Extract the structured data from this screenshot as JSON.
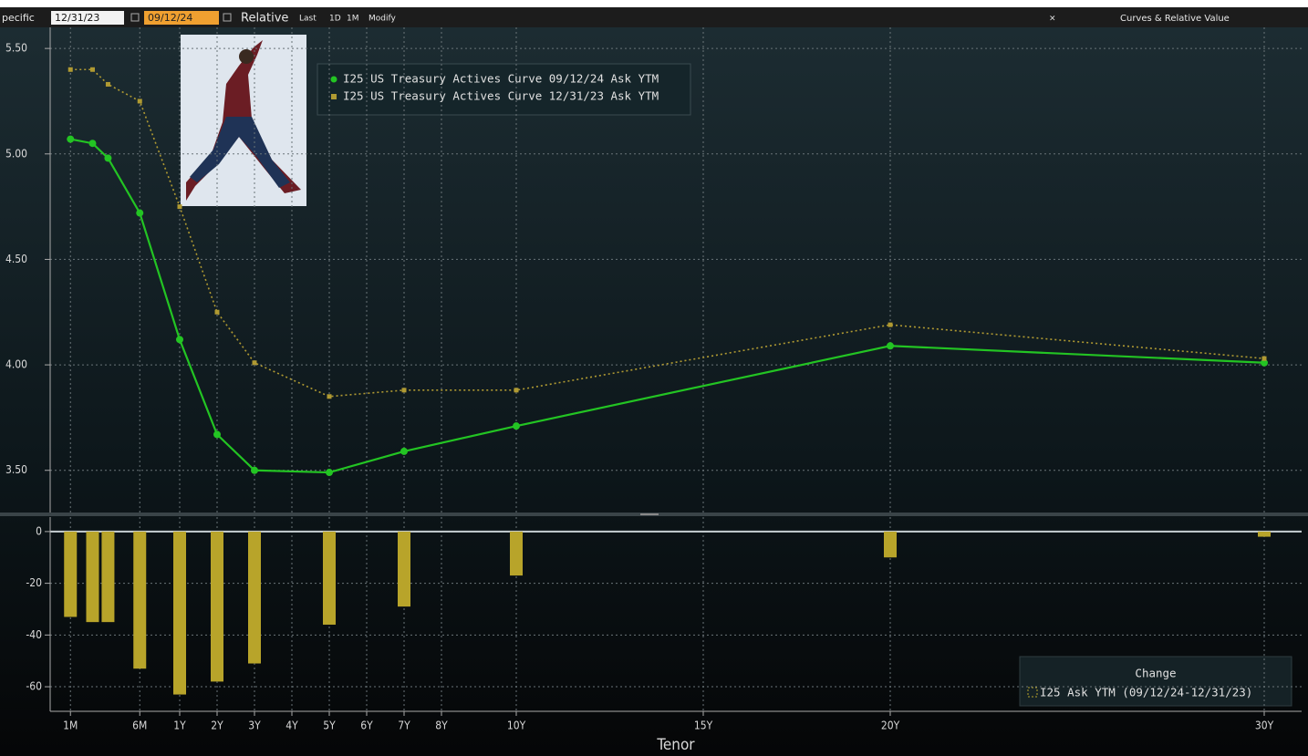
{
  "toolbar": {
    "mode": "pecific",
    "start": "12/31/23",
    "end": "09/12/24",
    "relative": "Relative",
    "last": "Last",
    "period": "1D",
    "period2": "1M",
    "modify": "Modify",
    "title": "Curves & Relative Value"
  },
  "chart_data": [
    {
      "type": "line",
      "x": [
        0.0833,
        0.1667,
        0.25,
        0.5,
        1,
        2,
        3,
        5,
        7,
        10,
        20,
        30
      ],
      "series": [
        {
          "name": "I25 US Treasury Actives Curve 09/12/24 Ask YTM",
          "color": "#23c423",
          "values": [
            5.07,
            5.05,
            4.98,
            4.72,
            4.12,
            3.67,
            3.5,
            3.49,
            3.59,
            3.71,
            4.09,
            4.01
          ]
        },
        {
          "name": "I25 US Treasury Actives Curve 12/31/23 Ask YTM",
          "color": "#b09a32",
          "values": [
            5.4,
            5.4,
            5.33,
            5.25,
            4.75,
            4.25,
            4.01,
            3.85,
            3.88,
            3.88,
            4.19,
            4.03
          ]
        }
      ],
      "ylim": [
        3.3,
        5.6
      ],
      "yticks": [
        {
          "value": 5.5,
          "label": "5.50"
        },
        {
          "value": 5,
          "label": "5.00"
        },
        {
          "value": 4.5,
          "label": "4.50"
        },
        {
          "value": 4,
          "label": "4.00"
        },
        {
          "value": 3.5,
          "label": "3.50"
        }
      ],
      "xlim": [
        0,
        31
      ],
      "xticks": [
        {
          "value": 0.0833,
          "label": "1M"
        },
        {
          "value": 0.5,
          "label": "6M"
        },
        {
          "value": 1,
          "label": "1Y"
        },
        {
          "value": 2,
          "label": "2Y"
        },
        {
          "value": 3,
          "label": "3Y"
        },
        {
          "value": 4,
          "label": "4Y"
        },
        {
          "value": 5,
          "label": "5Y"
        },
        {
          "value": 6,
          "label": "6Y"
        },
        {
          "value": 7,
          "label": "7Y"
        },
        {
          "value": 8,
          "label": "8Y"
        },
        {
          "value": 10,
          "label": "10Y"
        },
        {
          "value": 15,
          "label": "15Y"
        },
        {
          "value": 20,
          "label": "20Y"
        },
        {
          "value": 30,
          "label": "30Y"
        }
      ],
      "xlabel": "Tenor",
      "grid": true
    },
    {
      "type": "bar",
      "title": "Change",
      "x": [
        0.0833,
        0.1667,
        0.25,
        0.5,
        1,
        2,
        3,
        5,
        7,
        10,
        20,
        30
      ],
      "series": [
        {
          "name": "I25 Ask YTM (09/12/24-12/31/23)",
          "color": "#b8a42a",
          "values": [
            -33,
            -35,
            -35,
            -53,
            -63,
            -58,
            -51,
            -36,
            -29,
            -17,
            -10,
            -2
          ]
        }
      ],
      "ylim": [
        -69.5,
        5.6
      ],
      "yticks": [
        0,
        -20,
        -40,
        -60
      ],
      "grid": true
    }
  ]
}
